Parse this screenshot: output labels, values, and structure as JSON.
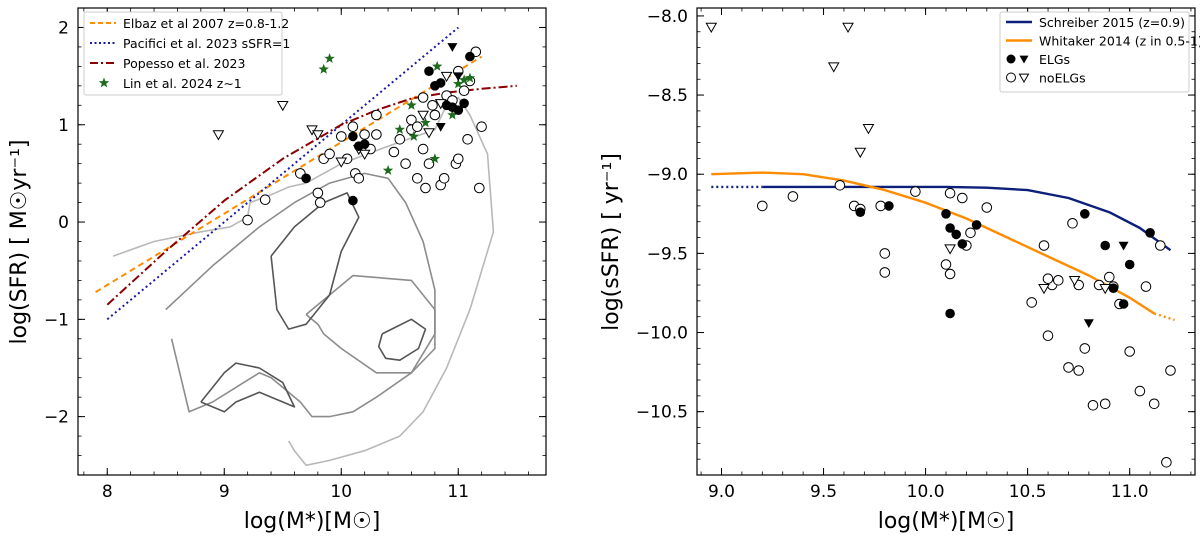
{
  "chart_data": [
    {
      "type": "scatter",
      "xlabel": "log(M*)[M☉]",
      "ylabel": "log(SFR) [ M☉yr⁻¹]",
      "xlim": [
        7.75,
        11.75
      ],
      "ylim": [
        -2.6,
        2.2
      ],
      "xticks": [
        8,
        9,
        10,
        11
      ],
      "yticks": [
        -2,
        -1,
        0,
        1,
        2
      ],
      "legend_position": "top-left",
      "legend": [
        {
          "label": "Elbaz et al 2007 z=0.8-1.2",
          "color": "#ff8c00",
          "style": "dashed"
        },
        {
          "label": "Pacifici et al. 2023 sSFR=1",
          "color": "#1a1aa6",
          "style": "dotted"
        },
        {
          "label": "Popesso et al. 2023",
          "color": "#8b0000",
          "style": "dashdot"
        },
        {
          "label": "Lin et al. 2024 z∼1",
          "color": "#1e6b1e",
          "style": "star"
        }
      ],
      "lines": [
        {
          "name": "Elbaz et al 2007 z=0.8-1.2",
          "color": "#ff8c00",
          "dash": "6,4",
          "x": [
            7.9,
            11.2
          ],
          "y": [
            -0.72,
            1.7
          ]
        },
        {
          "name": "Pacifici et al. 2023 sSFR=1",
          "color": "#1a1aa6",
          "dash": "2,3",
          "x": [
            8.0,
            11.0
          ],
          "y": [
            -1.0,
            2.0
          ]
        },
        {
          "name": "Popesso et al. 2023",
          "color": "#8b0000",
          "dash": "9,3,2,3",
          "x": [
            8.0,
            8.5,
            9.0,
            9.5,
            10.0,
            10.3,
            10.6,
            10.9,
            11.2,
            11.5
          ],
          "y": [
            -0.85,
            -0.3,
            0.22,
            0.65,
            1.0,
            1.15,
            1.27,
            1.33,
            1.37,
            1.4
          ]
        }
      ],
      "contours": [
        {
          "color": "#b8b8b8",
          "x": [
            8.05,
            8.4,
            8.8,
            9.05,
            9.2,
            9.22,
            9.4,
            9.55,
            9.7,
            10.0,
            10.4,
            10.8,
            10.9,
            11.0,
            11.1,
            11.25,
            11.3,
            11.1,
            10.9,
            10.7,
            10.5,
            10.2,
            9.9,
            9.7,
            9.6,
            9.55
          ],
          "y": [
            -0.35,
            -0.2,
            -0.1,
            -0.05,
            0.05,
            0.2,
            0.28,
            0.36,
            0.4,
            0.6,
            0.78,
            0.95,
            1.2,
            1.28,
            1.1,
            0.7,
            -0.1,
            -0.9,
            -1.5,
            -1.95,
            -2.2,
            -2.35,
            -2.45,
            -2.5,
            -2.35,
            -2.25
          ]
        },
        {
          "color": "#8c8c8c",
          "x": [
            8.5,
            8.9,
            9.3,
            9.6,
            9.9,
            10.2,
            10.4,
            10.55,
            10.7,
            10.8,
            10.8,
            10.6,
            10.3,
            10.1,
            9.9,
            9.75,
            9.65,
            9.5,
            9.4,
            9.3,
            9.1,
            8.9,
            8.7,
            8.55
          ],
          "y": [
            -0.9,
            -0.45,
            -0.05,
            0.2,
            0.4,
            0.5,
            0.45,
            0.2,
            -0.2,
            -0.7,
            -1.15,
            -1.55,
            -1.8,
            -1.95,
            -2.0,
            -2.0,
            -1.85,
            -1.7,
            -1.6,
            -1.55,
            -1.7,
            -1.85,
            -1.95,
            -1.2
          ]
        },
        {
          "color": "#8c8c8c",
          "x": [
            9.7,
            10.1,
            10.6,
            10.8,
            10.8,
            10.6,
            10.3,
            10.0,
            9.85,
            9.8,
            9.7
          ],
          "y": [
            -0.95,
            -0.55,
            -0.6,
            -0.9,
            -1.3,
            -1.55,
            -1.55,
            -1.3,
            -1.15,
            -1.05,
            -0.95
          ]
        },
        {
          "color": "#555555",
          "x": [
            9.4,
            9.6,
            9.85,
            10.05,
            10.15,
            10.0,
            9.9,
            9.7,
            9.55,
            9.45,
            9.4
          ],
          "y": [
            -0.35,
            -0.05,
            0.2,
            0.3,
            0.05,
            -0.3,
            -0.75,
            -1.05,
            -1.1,
            -0.9,
            -0.35
          ]
        },
        {
          "color": "#555555",
          "x": [
            10.35,
            10.6,
            10.72,
            10.66,
            10.5,
            10.38,
            10.32,
            10.35
          ],
          "y": [
            -1.15,
            -1.0,
            -1.1,
            -1.3,
            -1.42,
            -1.4,
            -1.28,
            -1.15
          ]
        },
        {
          "color": "#555555",
          "x": [
            8.8,
            9.0,
            9.1,
            9.3,
            9.5,
            9.6,
            9.5,
            9.3,
            9.1,
            9.0,
            8.8
          ],
          "y": [
            -1.85,
            -1.55,
            -1.45,
            -1.5,
            -1.65,
            -1.9,
            -1.85,
            -1.75,
            -1.85,
            -1.95,
            -1.85
          ]
        }
      ],
      "elgs": {
        "x": [
          9.7,
          10.1,
          10.1,
          10.15,
          10.2,
          10.75,
          10.85,
          11.0,
          11.05,
          11.1,
          10.9,
          10.95,
          10.8
        ],
        "y": [
          0.45,
          0.22,
          0.88,
          0.78,
          0.8,
          1.55,
          1.43,
          1.15,
          1.22,
          1.7,
          1.2,
          1.18,
          1.4
        ]
      },
      "noelgs": {
        "x": [
          9.2,
          9.35,
          9.65,
          9.8,
          9.82,
          9.85,
          9.9,
          10.0,
          10.05,
          10.1,
          10.12,
          10.15,
          10.2,
          10.25,
          10.3,
          10.45,
          10.5,
          10.55,
          10.6,
          10.65,
          10.7,
          10.72,
          10.75,
          10.78,
          10.8,
          10.85,
          10.88,
          10.9,
          10.95,
          10.98,
          11.0,
          11.05,
          11.08,
          11.1,
          11.15,
          11.18,
          11.2,
          10.6,
          10.65,
          10.7,
          10.3,
          11.0
        ],
        "y": [
          0.02,
          0.23,
          0.5,
          0.3,
          0.2,
          0.65,
          0.7,
          0.88,
          0.65,
          0.98,
          0.5,
          0.45,
          0.9,
          0.75,
          1.1,
          0.72,
          0.85,
          0.6,
          0.95,
          0.45,
          0.75,
          0.35,
          0.6,
          1.2,
          1.1,
          0.38,
          0.45,
          1.3,
          1.25,
          0.6,
          1.55,
          1.35,
          0.85,
          1.45,
          1.75,
          0.35,
          0.98,
          1.05,
          0.98,
          1.28,
          0.9,
          0.65
        ]
      },
      "elg_triangles": {
        "x": [
          10.95,
          10.85,
          11.0
        ],
        "y": [
          1.8,
          0.98,
          1.5
        ]
      },
      "noelg_triangles": {
        "x": [
          8.95,
          9.5,
          9.75,
          9.8,
          10.0,
          10.2,
          10.7,
          10.75,
          10.85,
          10.9,
          10.15
        ],
        "y": [
          0.9,
          1.2,
          0.95,
          0.9,
          0.62,
          0.7,
          1.1,
          0.92,
          1.22,
          1.5,
          0.75
        ]
      },
      "stars": {
        "x": [
          9.85,
          9.9,
          10.4,
          10.5,
          10.62,
          10.72,
          10.82,
          11.0,
          11.05,
          11.1,
          10.6,
          10.8,
          10.95
        ],
        "y": [
          1.57,
          1.68,
          0.53,
          0.95,
          0.88,
          1.02,
          1.6,
          1.42,
          1.46,
          1.48,
          1.2,
          0.65,
          1.1
        ]
      }
    },
    {
      "type": "scatter",
      "xlabel": "log(M*)[M☉]",
      "ylabel": "log(sSFR) [ yr⁻¹]",
      "xlim": [
        8.88,
        11.32
      ],
      "ylim": [
        -10.9,
        -7.95
      ],
      "xticks": [
        9.0,
        9.5,
        10.0,
        10.5,
        11.0
      ],
      "xtick_labels": [
        "9.0",
        "9.5",
        "10.0",
        "10.5",
        "11.0"
      ],
      "yticks": [
        -8.0,
        -8.5,
        -9.0,
        -9.5,
        -10.0,
        -10.5
      ],
      "ytick_labels": [
        "−8.0",
        "−8.5",
        "−9.0",
        "−9.5",
        "−10.0",
        "−10.5"
      ],
      "legend_position": "top-right",
      "legend": [
        {
          "label": "Schreiber 2015 (z=0.9)",
          "color": "#0c1f7a",
          "style": "line"
        },
        {
          "label": "Whitaker 2014 (z in 0.5-1)",
          "color": "#ff8c00",
          "style": "line"
        },
        {
          "label": "ELGs",
          "color": "#000000",
          "style": "filled"
        },
        {
          "label": "noELGs",
          "color": "#000000",
          "style": "open"
        }
      ],
      "lines": [
        {
          "name": "Schreiber 2015 (z=0.9)",
          "color": "#0c1f7a",
          "dash": "",
          "x": [
            9.2,
            9.5,
            9.8,
            10.1,
            10.3,
            10.5,
            10.7,
            10.9,
            11.05,
            11.2
          ],
          "y": [
            -9.08,
            -9.08,
            -9.08,
            -9.08,
            -9.085,
            -9.1,
            -9.15,
            -9.24,
            -9.34,
            -9.48
          ]
        },
        {
          "name": "Schreiber 2015 dotted",
          "color": "#0c1f7a",
          "dash": "2,3",
          "x": [
            8.95,
            9.2
          ],
          "y": [
            -9.08,
            -9.08
          ]
        },
        {
          "name": "Whitaker 2014 (z in 0.5-1)",
          "color": "#ff8c00",
          "dash": "",
          "x": [
            8.95,
            9.2,
            9.4,
            9.6,
            9.8,
            10.0,
            10.2,
            10.4,
            10.6,
            10.8,
            11.0,
            11.12
          ],
          "y": [
            -9.0,
            -8.99,
            -9.0,
            -9.04,
            -9.1,
            -9.18,
            -9.28,
            -9.4,
            -9.52,
            -9.64,
            -9.78,
            -9.88
          ]
        },
        {
          "name": "Whitaker 2014 dotted",
          "color": "#ff8c00",
          "dash": "2,3",
          "x": [
            11.12,
            11.22
          ],
          "y": [
            -9.88,
            -9.92
          ]
        }
      ],
      "elgs": {
        "x": [
          9.68,
          9.82,
          10.1,
          10.12,
          10.15,
          10.18,
          10.25,
          10.12,
          10.78,
          10.88,
          10.92,
          10.97,
          11.0,
          11.1
        ],
        "y": [
          -9.24,
          -9.2,
          -9.25,
          -9.34,
          -9.38,
          -9.44,
          -9.32,
          -9.88,
          -9.25,
          -9.45,
          -9.72,
          -9.82,
          -9.57,
          -9.37
        ]
      },
      "noelgs": {
        "x": [
          9.2,
          9.35,
          9.58,
          9.65,
          9.68,
          9.78,
          9.8,
          9.8,
          9.95,
          10.1,
          10.12,
          10.18,
          10.2,
          10.22,
          10.3,
          10.52,
          10.58,
          10.6,
          10.62,
          10.65,
          10.7,
          10.72,
          10.75,
          10.78,
          10.82,
          10.85,
          10.88,
          10.9,
          10.92,
          10.95,
          11.0,
          11.05,
          11.08,
          11.12,
          11.15,
          11.18,
          11.2,
          10.12,
          10.6,
          10.75
        ],
        "y": [
          -9.2,
          -9.14,
          -9.07,
          -9.2,
          -9.22,
          -9.2,
          -9.5,
          -9.62,
          -9.11,
          -9.57,
          -9.63,
          -9.15,
          -9.45,
          -9.37,
          -9.21,
          -9.81,
          -9.45,
          -10.02,
          -9.7,
          -9.67,
          -10.22,
          -9.31,
          -9.7,
          -10.1,
          -10.46,
          -9.7,
          -10.45,
          -9.65,
          -9.71,
          -9.82,
          -10.12,
          -10.37,
          -9.71,
          -10.45,
          -9.45,
          -10.82,
          -10.24,
          -9.12,
          -9.66,
          -10.24
        ]
      },
      "elg_triangles": {
        "x": [
          10.8,
          10.97
        ],
        "y": [
          -9.94,
          -9.45
        ]
      },
      "noelg_triangles": {
        "x": [
          8.95,
          9.55,
          9.62,
          9.72,
          9.68,
          10.12,
          10.58,
          10.73,
          10.88
        ],
        "y": [
          -8.07,
          -8.32,
          -8.07,
          -8.71,
          -8.86,
          -9.47,
          -9.72,
          -9.67,
          -9.72
        ]
      }
    }
  ]
}
